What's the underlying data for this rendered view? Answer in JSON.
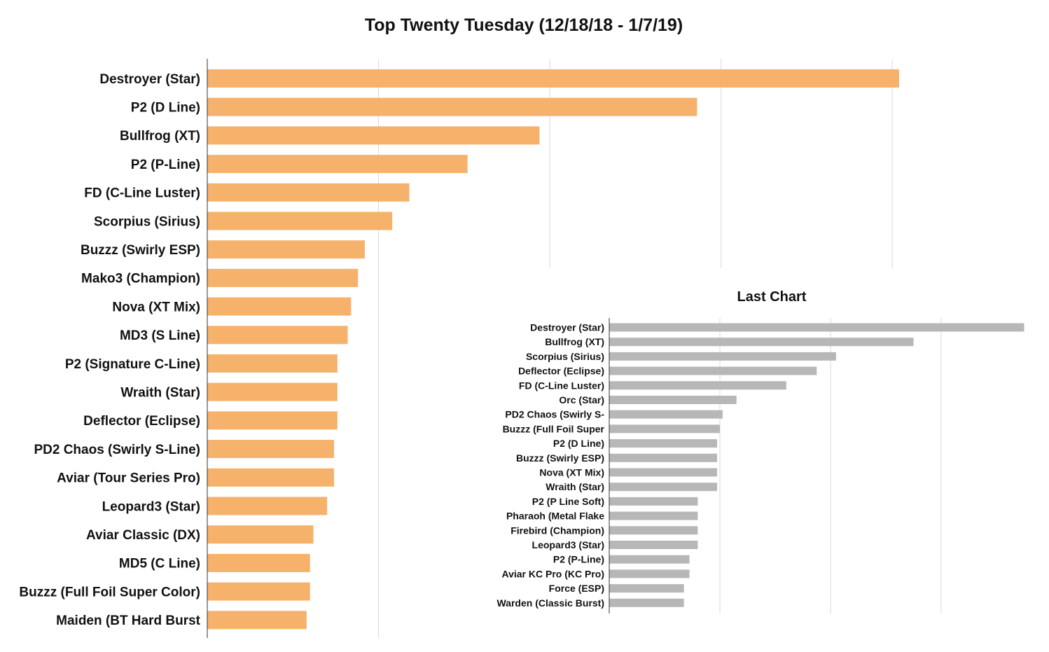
{
  "chart_data": [
    {
      "type": "bar",
      "orientation": "horizontal",
      "title": "Top Twenty Tuesday (12/18/18 - 1/7/19)",
      "categories": [
        "Destroyer (Star)",
        "P2 (D Line)",
        "Bullfrog (XT)",
        "P2 (P-Line)",
        "FD (C-Line Luster)",
        "Scorpius (Sirius)",
        "Buzzz (Swirly ESP)",
        "Mako3 (Champion)",
        "Nova (XT Mix)",
        "MD3 (S Line)",
        "P2 (Signature C-Line)",
        "Wraith (Star)",
        "Deflector (Eclipse)",
        "PD2 Chaos (Swirly S-Line)",
        "Aviar (Tour Series Pro)",
        "Leopard3 (Star)",
        "Aviar Classic (DX)",
        "MD5 (C Line)",
        "Buzzz (Full Foil Super Color)",
        "Maiden (BT Hard Burst"
      ],
      "values": [
        202,
        143,
        97,
        76,
        59,
        54,
        46,
        44,
        42,
        41,
        38,
        38,
        38,
        37,
        37,
        35,
        31,
        30,
        30,
        29
      ],
      "xlim": [
        0,
        220
      ],
      "gridlines": [
        0,
        50,
        100,
        150,
        200
      ],
      "grid": true,
      "bar_color": "#f6b26b"
    },
    {
      "type": "bar",
      "orientation": "horizontal",
      "title": "Last Chart",
      "categories": [
        "Destroyer (Star)",
        "Bullfrog (XT)",
        "Scorpius (Sirius)",
        "Deflector (Eclipse)",
        "FD (C-Line Luster)",
        "Orc (Star)",
        "PD2 Chaos (Swirly S-",
        "Buzzz (Full Foil Super",
        "P2 (D Line)",
        "Buzzz (Swirly ESP)",
        "Nova (XT Mix)",
        "Wraith (Star)",
        "P2 (P Line Soft)",
        "Pharaoh (Metal Flake",
        "Firebird (Champion)",
        "Leopard3 (Star)",
        "P2 (P-Line)",
        "Aviar KC Pro (KC Pro)",
        "Force (ESP)",
        "Warden (Classic Burst)"
      ],
      "values": [
        75,
        55,
        41,
        37.5,
        32,
        23,
        20.5,
        20,
        19.5,
        19.5,
        19.5,
        19.5,
        16,
        16,
        16,
        16,
        14.5,
        14.5,
        13.5,
        13.5
      ],
      "xlim": [
        0,
        80
      ],
      "gridlines": [
        0,
        20,
        40,
        60
      ],
      "grid": true,
      "bar_color": "#b7b7b7"
    }
  ]
}
